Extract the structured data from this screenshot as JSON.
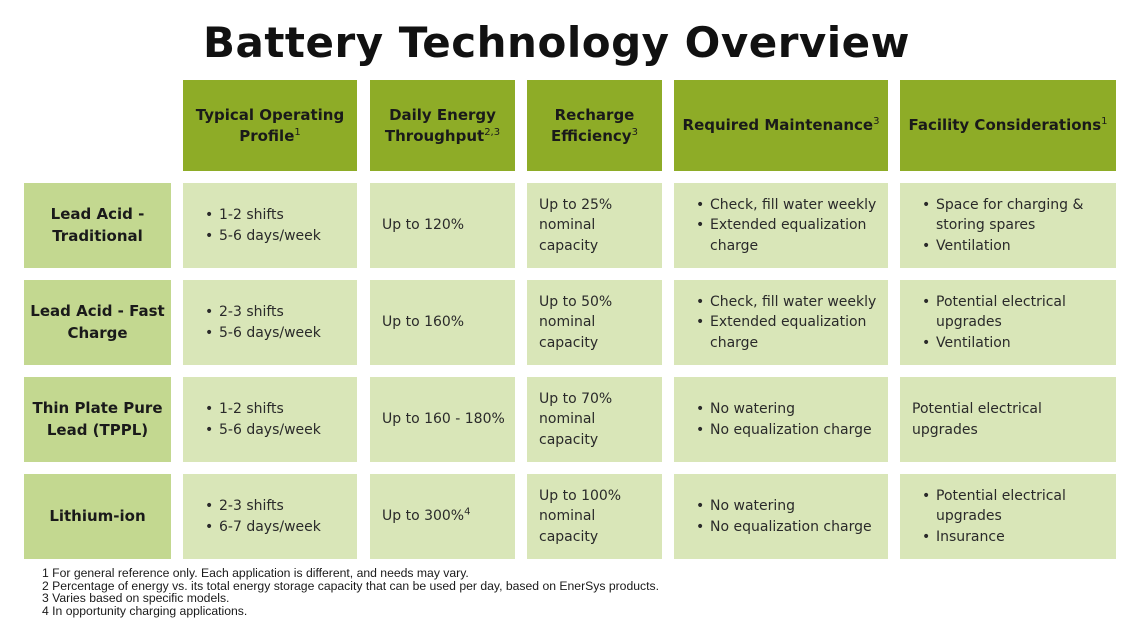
{
  "title": "Battery Technology Overview",
  "columns": [
    {
      "label": "Typical Operating Profile",
      "sup": "1"
    },
    {
      "label": "Daily Energy Throughput",
      "sup": "2,3"
    },
    {
      "label": "Recharge Efficiency",
      "sup": "3"
    },
    {
      "label": "Required Maintenance",
      "sup": "3"
    },
    {
      "label": "Facility Considerations",
      "sup": "1"
    }
  ],
  "rows": [
    {
      "name": "Lead Acid - Traditional",
      "profile": [
        "1-2 shifts",
        "5-6 days/week"
      ],
      "throughput": "Up to 120%",
      "throughput_sup": "",
      "efficiency": "Up to 25% nominal capacity",
      "maintenance": [
        "Check, fill water weekly",
        "Extended equalization charge"
      ],
      "facility": [
        "Space for charging & storing spares",
        "Ventilation"
      ],
      "facility_text": ""
    },
    {
      "name": "Lead Acid - Fast Charge",
      "profile": [
        "2-3 shifts",
        "5-6 days/week"
      ],
      "throughput": "Up to 160%",
      "throughput_sup": "",
      "efficiency": "Up to 50% nominal capacity",
      "maintenance": [
        "Check, fill water weekly",
        "Extended equalization charge"
      ],
      "facility": [
        "Potential electrical upgrades",
        "Ventilation"
      ],
      "facility_text": ""
    },
    {
      "name": "Thin Plate Pure Lead (TPPL)",
      "profile": [
        "1-2 shifts",
        "5-6 days/week"
      ],
      "throughput": "Up to 160 - 180%",
      "throughput_sup": "",
      "efficiency": "Up to 70% nominal capacity",
      "maintenance": [
        "No watering",
        "No equalization charge"
      ],
      "facility": [],
      "facility_text": "Potential electrical upgrades"
    },
    {
      "name": "Lithium-ion",
      "profile": [
        "2-3 shifts",
        "6-7 days/week"
      ],
      "throughput": "Up to 300%",
      "throughput_sup": "4",
      "efficiency": "Up to 100% nominal capacity",
      "maintenance": [
        "No watering",
        "No equalization charge"
      ],
      "facility": [
        "Potential electrical upgrades",
        "Insurance"
      ],
      "facility_text": ""
    }
  ],
  "footnotes": [
    "1 For general reference only. Each application is different, and needs may vary.",
    "2 Percentage of energy vs. its total energy storage capacity that can be used per day, based on EnerSys products.",
    "3 Varies based on specific models.",
    "4 In opportunity charging applications."
  ],
  "colors": {
    "header_bg": "#8eac27",
    "row_header_bg": "#c3d890",
    "cell_bg": "#d9e6b8"
  }
}
